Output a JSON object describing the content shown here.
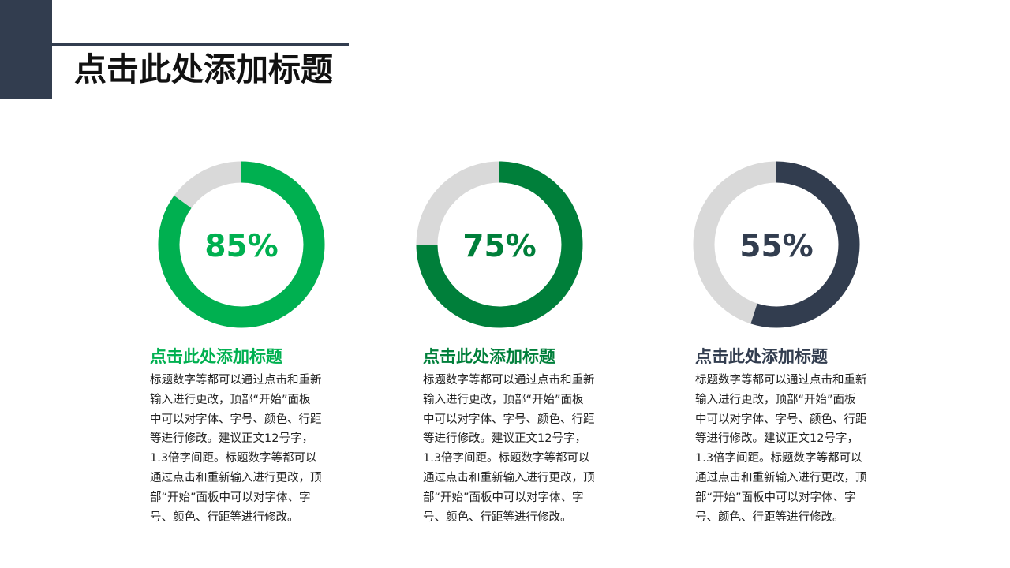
{
  "page": {
    "title": "点击此处添加标题"
  },
  "colors": {
    "dark_navy": "#323d4f",
    "track_gray": "#d9d9d9",
    "green_bright": "#00b050",
    "green_dark": "#007f3a"
  },
  "chart_data": {
    "type": "pie",
    "charts": [
      {
        "label": "85%",
        "value": 85,
        "color": "#00b050"
      },
      {
        "label": "75%",
        "value": 75,
        "color": "#007f3a"
      },
      {
        "label": "55%",
        "value": 55,
        "color": "#323d4f"
      }
    ]
  },
  "cards": [
    {
      "heading": "点击此处添加标题",
      "body": "标题数字等都可以通过点击和重新\n输入进行更改，顶部“开始”面板\n中可以对字体、字号、颜色、行距\n等进行修改。建议正文12号字，\n1.3倍字间距。标题数字等都可以\n通过点击和重新输入进行更改，顶\n部“开始”面板中可以对字体、字\n号、颜色、行距等进行修改。"
    },
    {
      "heading": "点击此处添加标题",
      "body": "标题数字等都可以通过点击和重新\n输入进行更改，顶部“开始”面板\n中可以对字体、字号、颜色、行距\n等进行修改。建议正文12号字，\n1.3倍字间距。标题数字等都可以\n通过点击和重新输入进行更改，顶\n部“开始”面板中可以对字体、字\n号、颜色、行距等进行修改。"
    },
    {
      "heading": "点击此处添加标题",
      "body": "标题数字等都可以通过点击和重新\n输入进行更改，顶部“开始”面板\n中可以对字体、字号、颜色、行距\n等进行修改。建议正文12号字，\n1.3倍字间距。标题数字等都可以\n通过点击和重新输入进行更改，顶\n部“开始”面板中可以对字体、字\n号、颜色、行距等进行修改。"
    }
  ]
}
